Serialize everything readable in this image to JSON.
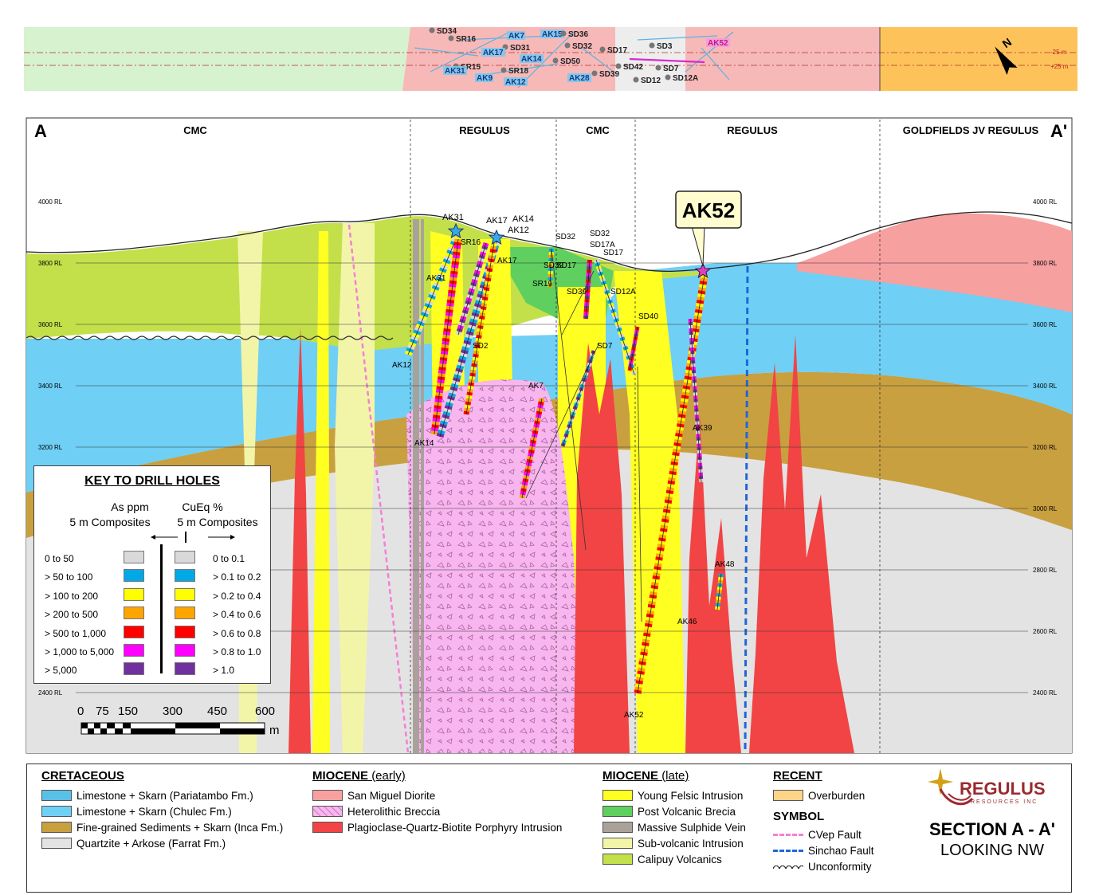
{
  "plan": {
    "holes": [
      "SD34",
      "SR16",
      "AK7",
      "AK15",
      "SD36",
      "SD31",
      "SD32",
      "SD17",
      "SD3",
      "AK52",
      "AK17",
      "AK14",
      "SD50",
      "SR15",
      "AK31",
      "SR18",
      "AK9",
      "AK12",
      "AK28",
      "SD39",
      "SD42",
      "SD7",
      "SD12",
      "SD12A"
    ],
    "offset_top": "-25 m",
    "offset_bottom": "+25 m",
    "north_label": "N"
  },
  "section": {
    "left_label": "A",
    "right_label": "A'",
    "zones": [
      "CMC",
      "REGULUS",
      "CMC",
      "REGULUS",
      "GOLDFIELDS JV REGULUS"
    ],
    "rl_left": [
      "4000 RL",
      "3800 RL",
      "3600 RL",
      "3400 RL",
      "3200 RL",
      "3000 RL",
      "2800 RL",
      "2600 RL",
      "2400 RL"
    ],
    "rl_right": [
      "4000 RL",
      "3800 RL",
      "3600 RL",
      "3400 RL",
      "3200 RL",
      "3000 RL",
      "2800 RL",
      "2600 RL",
      "2400 RL"
    ],
    "callout": "AK52",
    "hole_labels": [
      "AK31",
      "AK17",
      "AK14",
      "AK12",
      "SR16",
      "AK17",
      "SD32",
      "SD32",
      "SD17A",
      "SD17",
      "SD39",
      "SD17",
      "AK31",
      "SR19",
      "SD39",
      "SD12A",
      "SD40",
      "SD2",
      "AK12",
      "SD7",
      "AK7",
      "AK14",
      "AK39",
      "AK48",
      "AK46",
      "AK52"
    ]
  },
  "key": {
    "title": "KEY TO DRILL HOLES",
    "left_head_1": "As ppm",
    "left_head_2": "5 m Composites",
    "right_head_1": "CuEq %",
    "right_head_2": "5 m Composites",
    "rows": [
      {
        "as": "0 to 50",
        "cu": "0 to 0.1",
        "color": "#d9d9d9"
      },
      {
        "as": "> 50 to 100",
        "cu": "> 0.1 to 0.2",
        "color": "#00a9e6"
      },
      {
        "as": "> 100 to 200",
        "cu": "> 0.2 to 0.4",
        "color": "#ffff00"
      },
      {
        "as": "> 200 to 500",
        "cu": "> 0.4 to 0.6",
        "color": "#ffa500"
      },
      {
        "as": "> 500 to 1,000",
        "cu": "> 0.6 to 0.8",
        "color": "#ff0000"
      },
      {
        "as": "> 1,000 to 5,000",
        "cu": "> 0.8 to 1.0",
        "color": "#ff00ff"
      },
      {
        "as": "> 5,000",
        "cu": "> 1.0",
        "color": "#7030a0"
      }
    ]
  },
  "scale": {
    "ticks": [
      "0",
      "75",
      "150",
      "300",
      "450",
      "600"
    ],
    "unit": "m"
  },
  "legend": {
    "cretaceous_title": "CRETACEOUS",
    "cretaceous": [
      {
        "label": "Limestone + Skarn (Pariatambo Fm.)",
        "color": "#5bc0e8"
      },
      {
        "label": "Limestone + Skarn (Chulec Fm.)",
        "color": "#6fcff5"
      },
      {
        "label": "Fine-grained Sediments + Skarn (Inca Fm.)",
        "color": "#c8a040"
      },
      {
        "label": "Quartzite + Arkose (Farrat Fm.)",
        "color": "#e3e3e3"
      }
    ],
    "miocene_early_title": "MIOCENE",
    "miocene_early_sub": "(early)",
    "miocene_early": [
      {
        "label": "San Miguel Diorite",
        "color": "#f7a0a0"
      },
      {
        "label": "Heterolithic Breccia",
        "color": "#f7b6ee"
      },
      {
        "label": "Plagioclase-Quartz-Biotite Porphyry Intrusion",
        "color": "#f24444"
      }
    ],
    "miocene_late_title": "MIOCENE",
    "miocene_late_sub": "(late)",
    "miocene_late": [
      {
        "label": "Young Felsic Intrusion",
        "color": "#ffff22"
      },
      {
        "label": "Post Volcanic Brecia",
        "color": "#5fcf5f"
      },
      {
        "label": "Massive Sulphide Vein",
        "color": "#aaa29a"
      },
      {
        "label": "Sub-volcanic Intrusion",
        "color": "#f2f5a8"
      },
      {
        "label": "Calipuy Volcanics",
        "color": "#c3e04a"
      }
    ],
    "recent_title": "RECENT",
    "recent": [
      {
        "label": "Overburden",
        "color": "#fdd48a"
      }
    ],
    "symbol_title": "SYMBOL",
    "symbols": [
      {
        "label": "CVep Fault",
        "color": "#f57fd6"
      },
      {
        "label": "Sinchao Fault",
        "color": "#1f66d8"
      },
      {
        "label": "Unconformity",
        "color": "#333333"
      }
    ]
  },
  "brand": {
    "name": "REGULUS",
    "tagline": "RESOURCES INC"
  },
  "title": {
    "main": "SECTION A - A'",
    "sub": "LOOKING NW"
  }
}
